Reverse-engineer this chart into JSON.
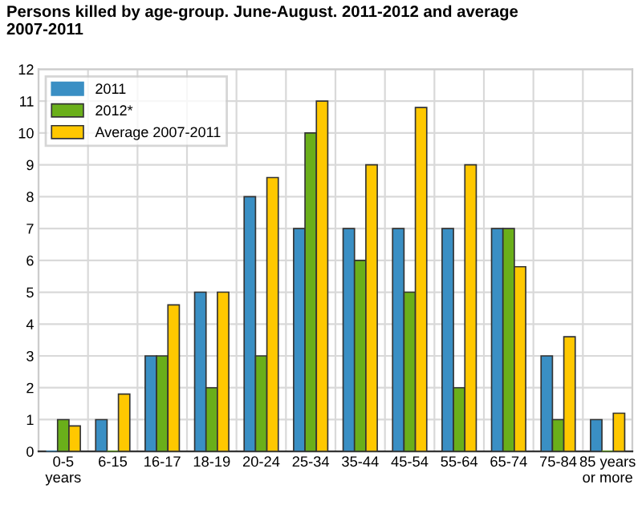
{
  "chart_data": {
    "type": "bar",
    "title": "Persons killed by age-group. June-August. 2011-2012 and average\n2007-2011",
    "categories": [
      "0-5\nyears",
      "6-15",
      "16-17",
      "18-19",
      "20-24",
      "25-34",
      "35-44",
      "45-54",
      "55-64",
      "65-74",
      "75-84",
      "85 years\nor more"
    ],
    "series": [
      {
        "name": "2011",
        "color": "#3a8fc4",
        "values": [
          0,
          1,
          3,
          5,
          8,
          7,
          7,
          7,
          7,
          7,
          3,
          1
        ]
      },
      {
        "name": "2012*",
        "color": "#6aaf1a",
        "values": [
          1,
          0,
          3,
          2,
          3,
          10,
          6,
          5,
          2,
          7,
          1,
          0
        ]
      },
      {
        "name": "Average 2007-2011",
        "color": "#ffc800",
        "values": [
          0.8,
          1.8,
          4.6,
          5,
          8.6,
          11,
          9,
          10.8,
          9,
          5.8,
          3.6,
          1.2
        ]
      }
    ],
    "ylim": [
      0,
      12
    ],
    "yticks": [
      0,
      1,
      2,
      3,
      4,
      5,
      6,
      7,
      8,
      9,
      10,
      11,
      12
    ],
    "grid": true,
    "legend": "top left"
  }
}
